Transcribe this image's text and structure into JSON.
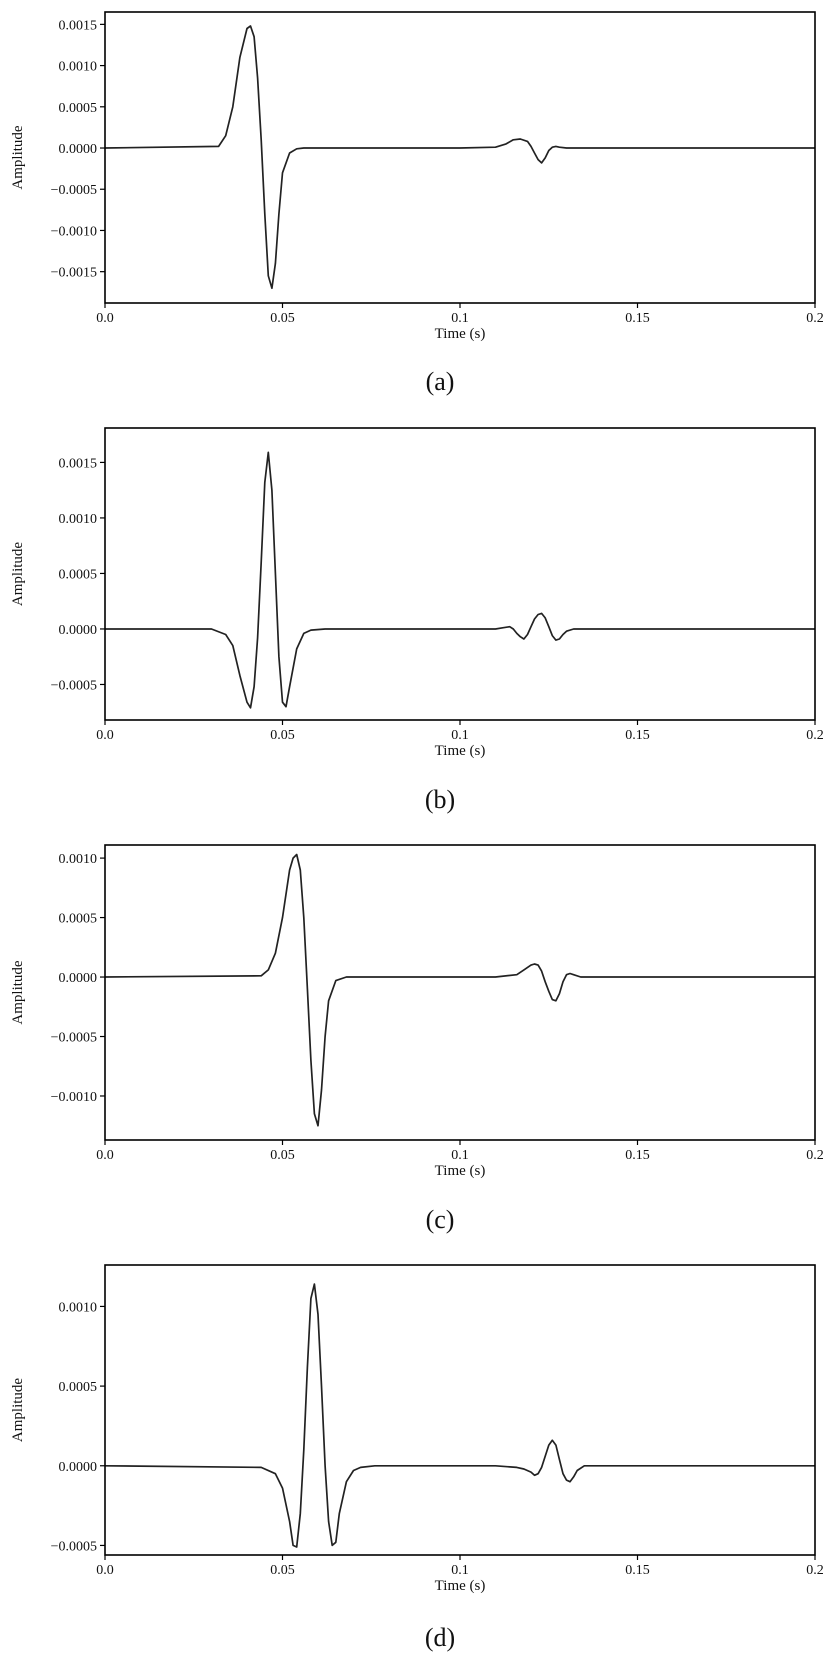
{
  "chart_data": [
    {
      "type": "line",
      "caption": "(a)",
      "xlabel": "Time (s)",
      "ylabel": "Amplitude",
      "xlim": [
        0,
        0.2
      ],
      "ylim": [
        -0.00188,
        0.00165
      ],
      "xticks": [
        0,
        0.05,
        0.1,
        0.15,
        0.2
      ],
      "xtick_labels": [
        "0.0",
        "0.05",
        "0.1",
        "0.15",
        "0.2"
      ],
      "yticks": [
        0.0015,
        0.001,
        0.0005,
        0,
        -0.0005,
        -0.001,
        -0.0015
      ],
      "ytick_labels": [
        "0.0015",
        "0.0010",
        "0.0005",
        "0.0000",
        "−0.0005",
        "−0.0010",
        "−0.0015"
      ],
      "grid": false,
      "series": [
        {
          "x": [
            0,
            0.032,
            0.034,
            0.036,
            0.038,
            0.04,
            0.041,
            0.042,
            0.043,
            0.044,
            0.045,
            0.046,
            0.047,
            0.048,
            0.049,
            0.05,
            0.052,
            0.054,
            0.056,
            0.06,
            0.1,
            0.11,
            0.113,
            0.115,
            0.117,
            0.119,
            0.12,
            0.121,
            0.122,
            0.123,
            0.124,
            0.125,
            0.126,
            0.127,
            0.128,
            0.13,
            0.2
          ],
          "y": [
            0,
            2e-05,
            0.00015,
            0.0005,
            0.0011,
            0.00145,
            0.00148,
            0.00135,
            0.00085,
            0.0001,
            -0.0008,
            -0.00155,
            -0.0017,
            -0.0014,
            -0.0008,
            -0.0003,
            -6e-05,
            -1e-05,
            0,
            0,
            0,
            1e-05,
            5e-05,
            0.0001,
            0.00011,
            8e-05,
            2e-05,
            -6e-05,
            -0.00014,
            -0.00018,
            -0.00012,
            -3e-05,
            1e-05,
            2e-05,
            1e-05,
            0,
            0
          ]
        }
      ]
    },
    {
      "type": "line",
      "caption": "(b)",
      "xlabel": "Time (s)",
      "ylabel": "Amplitude",
      "xlim": [
        0,
        0.2
      ],
      "ylim": [
        -0.00082,
        0.00181
      ],
      "xticks": [
        0,
        0.05,
        0.1,
        0.15,
        0.2
      ],
      "xtick_labels": [
        "0.0",
        "0.05",
        "0.1",
        "0.15",
        "0.2"
      ],
      "yticks": [
        0.0015,
        0.001,
        0.0005,
        0,
        -0.0005
      ],
      "ytick_labels": [
        "0.0015",
        "0.0010",
        "0.0005",
        "0.0000",
        "−0.0005"
      ],
      "grid": false,
      "series": [
        {
          "x": [
            0,
            0.03,
            0.034,
            0.036,
            0.038,
            0.04,
            0.041,
            0.042,
            0.043,
            0.044,
            0.045,
            0.046,
            0.047,
            0.048,
            0.049,
            0.05,
            0.051,
            0.052,
            0.054,
            0.056,
            0.058,
            0.062,
            0.1,
            0.11,
            0.112,
            0.114,
            0.115,
            0.116,
            0.117,
            0.118,
            0.119,
            0.12,
            0.121,
            0.122,
            0.123,
            0.124,
            0.125,
            0.126,
            0.127,
            0.128,
            0.129,
            0.13,
            0.132,
            0.2
          ],
          "y": [
            0,
            0,
            -5e-05,
            -0.00015,
            -0.00042,
            -0.00066,
            -0.00071,
            -0.00052,
            -8e-05,
            0.0006,
            0.00132,
            0.00159,
            0.00125,
            0.0005,
            -0.00025,
            -0.00066,
            -0.0007,
            -0.00052,
            -0.00018,
            -4e-05,
            -1e-05,
            0,
            0,
            0,
            1e-05,
            2e-05,
            0,
            -4e-05,
            -7e-05,
            -9e-05,
            -5e-05,
            2e-05,
            9e-05,
            0.00013,
            0.00014,
            0.0001,
            2e-05,
            -6e-05,
            -0.0001,
            -9e-05,
            -5e-05,
            -2e-05,
            0,
            0
          ]
        }
      ]
    },
    {
      "type": "line",
      "caption": "(c)",
      "xlabel": "Time (s)",
      "ylabel": "Amplitude",
      "xlim": [
        0,
        0.2
      ],
      "ylim": [
        -0.00137,
        0.00111
      ],
      "xticks": [
        0,
        0.05,
        0.1,
        0.15,
        0.2
      ],
      "xtick_labels": [
        "0.0",
        "0.05",
        "0.1",
        "0.15",
        "0.2"
      ],
      "yticks": [
        0.001,
        0.0005,
        0,
        -0.0005,
        -0.001
      ],
      "ytick_labels": [
        "0.0010",
        "0.0005",
        "0.0000",
        "−0.0005",
        "−0.0010"
      ],
      "grid": false,
      "series": [
        {
          "x": [
            0,
            0.044,
            0.046,
            0.048,
            0.05,
            0.052,
            0.053,
            0.054,
            0.055,
            0.056,
            0.057,
            0.058,
            0.059,
            0.06,
            0.061,
            0.062,
            0.063,
            0.065,
            0.068,
            0.07,
            0.11,
            0.116,
            0.118,
            0.12,
            0.121,
            0.122,
            0.123,
            0.124,
            0.125,
            0.126,
            0.127,
            0.128,
            0.129,
            0.13,
            0.131,
            0.132,
            0.134,
            0.2
          ],
          "y": [
            0,
            1e-05,
            6e-05,
            0.0002,
            0.0005,
            0.0009,
            0.001,
            0.00103,
            0.0009,
            0.0005,
            -0.0001,
            -0.0007,
            -0.00115,
            -0.00125,
            -0.00095,
            -0.0005,
            -0.0002,
            -3e-05,
            0,
            0,
            0,
            2e-05,
            6e-05,
            0.0001,
            0.00011,
            0.0001,
            5e-05,
            -4e-05,
            -0.00012,
            -0.00019,
            -0.0002,
            -0.00014,
            -4e-05,
            2e-05,
            3e-05,
            2e-05,
            0,
            0
          ]
        }
      ]
    },
    {
      "type": "line",
      "caption": "(d)",
      "xlabel": "Time (s)",
      "ylabel": "Amplitude",
      "xlim": [
        0,
        0.2
      ],
      "ylim": [
        -0.00056,
        0.00126
      ],
      "xticks": [
        0,
        0.05,
        0.1,
        0.15,
        0.2
      ],
      "xtick_labels": [
        "0.0",
        "0.05",
        "0.1",
        "0.15",
        "0.2"
      ],
      "yticks": [
        0.001,
        0.0005,
        0,
        -0.0005
      ],
      "ytick_labels": [
        "0.0010",
        "0.0005",
        "0.0000",
        "−0.0005"
      ],
      "grid": false,
      "series": [
        {
          "x": [
            0,
            0.044,
            0.048,
            0.05,
            0.052,
            0.053,
            0.054,
            0.055,
            0.056,
            0.057,
            0.058,
            0.059,
            0.06,
            0.061,
            0.062,
            0.063,
            0.064,
            0.065,
            0.066,
            0.068,
            0.07,
            0.072,
            0.076,
            0.11,
            0.116,
            0.118,
            0.12,
            0.121,
            0.122,
            0.123,
            0.124,
            0.125,
            0.126,
            0.127,
            0.128,
            0.129,
            0.13,
            0.131,
            0.132,
            0.133,
            0.135,
            0.2
          ],
          "y": [
            0,
            -1e-05,
            -5e-05,
            -0.00014,
            -0.00035,
            -0.0005,
            -0.00051,
            -0.0003,
            0.0001,
            0.00062,
            0.00105,
            0.00114,
            0.00095,
            0.0005,
            0,
            -0.00035,
            -0.0005,
            -0.00048,
            -0.0003,
            -0.0001,
            -3e-05,
            -1e-05,
            0,
            0,
            -1e-05,
            -2e-05,
            -4e-05,
            -6e-05,
            -5e-05,
            -1e-05,
            6e-05,
            0.00013,
            0.00016,
            0.00013,
            4e-05,
            -5e-05,
            -9e-05,
            -0.0001,
            -7e-05,
            -3e-05,
            0,
            0
          ]
        }
      ]
    }
  ]
}
